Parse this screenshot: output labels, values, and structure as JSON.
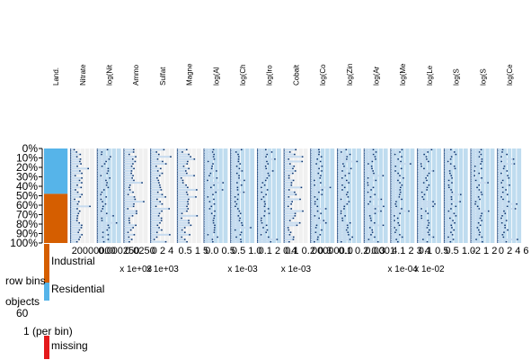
{
  "chart_data": {
    "type": "tableplot",
    "y_ticks": [
      "0%",
      "10%",
      "20%",
      "30%",
      "40%",
      "50%",
      "60%",
      "70%",
      "80%",
      "90%",
      "100%"
    ],
    "columns": [
      {
        "name": "Land.",
        "kind": "categorical",
        "split": 0.48
      },
      {
        "name": "Nitrate",
        "kind": "numeric",
        "ticks": "20000000",
        "multiplier": "",
        "shade": "light"
      },
      {
        "name": "log(Nit",
        "kind": "numeric",
        "ticks": "0.000250",
        "multiplier": "",
        "shade": "blue"
      },
      {
        "name": "Ammo",
        "kind": "numeric",
        "ticks": "0.0250",
        "multiplier": "x 1e+03",
        "shade": "light"
      },
      {
        "name": "Sulfat",
        "kind": "numeric",
        "ticks": "0 2 4",
        "multiplier": "x 1e+03",
        "shade": "light"
      },
      {
        "name": "Magne",
        "kind": "numeric",
        "ticks": "0.5 1 5",
        "multiplier": "",
        "shade": "light"
      },
      {
        "name": "log(Al",
        "kind": "numeric",
        "ticks": "0.0 0.5",
        "multiplier": "",
        "shade": "blue"
      },
      {
        "name": "log(Ch",
        "kind": "numeric",
        "ticks": "0.5 1.0",
        "multiplier": "x 1e-03",
        "shade": "blue"
      },
      {
        "name": "log(Iro",
        "kind": "numeric",
        "ticks": "0.1 2 0.4",
        "multiplier": "",
        "shade": "blue"
      },
      {
        "name": "Cobalt",
        "kind": "numeric",
        "ticks": "0.1 0.2 0.3",
        "multiplier": "x 1e-03",
        "shade": "light"
      },
      {
        "name": "log(Co",
        "kind": "numeric",
        "ticks": "000000.0",
        "multiplier": "",
        "shade": "blue"
      },
      {
        "name": "log(Zin",
        "kind": "numeric",
        "ticks": "0.1 0.2 0.3",
        "multiplier": "",
        "shade": "blue"
      },
      {
        "name": "log(Ar",
        "kind": "numeric",
        "ticks": "0.0001",
        "multiplier": "",
        "shade": "blue"
      },
      {
        "name": "log(Me",
        "kind": "numeric",
        "ticks": "4.1 2 3 4",
        "multiplier": "x 1e-04",
        "shade": "blue"
      },
      {
        "name": "log(Le",
        "kind": "numeric",
        "ticks": "0.1 0.5",
        "multiplier": "x 1e-02",
        "shade": "blue"
      },
      {
        "name": "log(S",
        "kind": "numeric",
        "ticks": "0.5 1.0",
        "multiplier": "",
        "shade": "blue"
      },
      {
        "name": "log(S",
        "kind": "numeric",
        "ticks": "-2 1 2",
        "multiplier": "",
        "shade": "blue"
      },
      {
        "name": "log(Ce",
        "kind": "numeric",
        "ticks": "0 2 4 6",
        "multiplier": "",
        "shade": "blue"
      }
    ],
    "legend": {
      "categories": [
        {
          "label": "Industrial",
          "color": "#D55E00"
        },
        {
          "label": "Residential",
          "color": "#56B4E9"
        }
      ],
      "row_bins_label": "row bins",
      "objects_label": "objects",
      "objects_count": "60",
      "objects_unit": "1 (per bin)",
      "missing_label": "missing",
      "missing_color": "#E41A1C"
    },
    "colors": {
      "industrial": "#D55E00",
      "residential": "#56B4E9",
      "bar_light": "#C6DBEF",
      "bg_light": "#F0F0F0",
      "bg_blue": "#BFDCEF",
      "mean_mark": "#08306B"
    }
  }
}
